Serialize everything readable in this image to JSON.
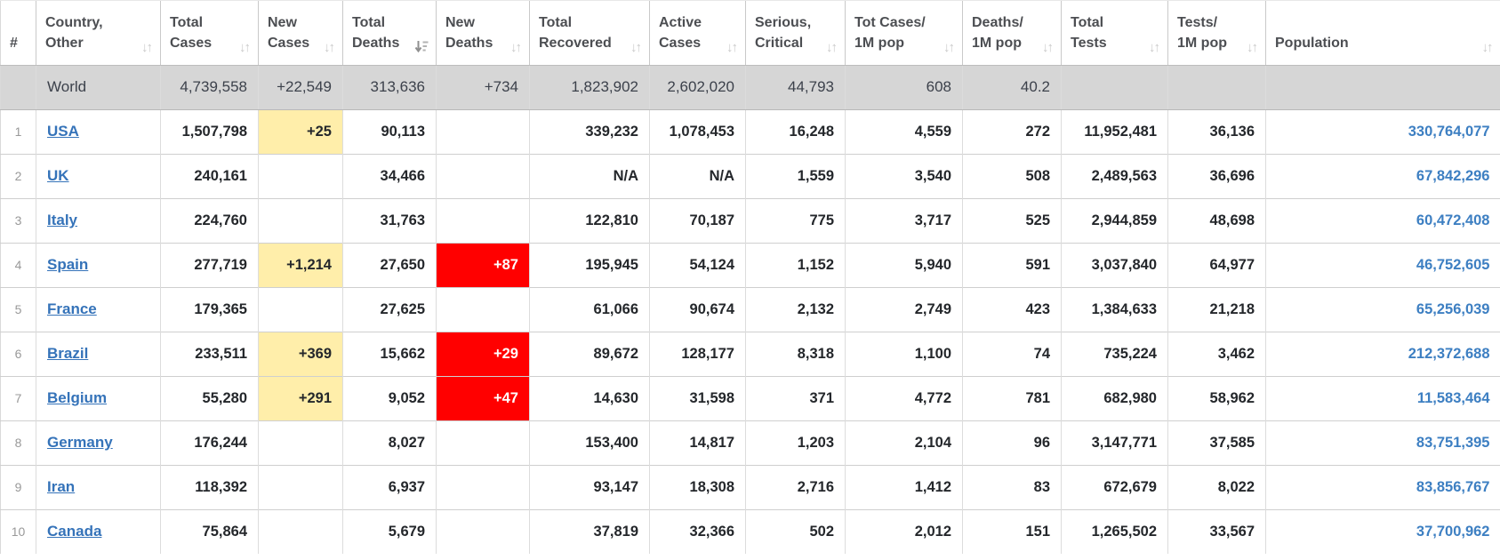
{
  "table": {
    "columns": [
      {
        "key": "idx",
        "label": "#",
        "sort": null
      },
      {
        "key": "country",
        "label": "Country,\nOther",
        "sort": "both"
      },
      {
        "key": "total_cases",
        "label": "Total\nCases",
        "sort": "both"
      },
      {
        "key": "new_cases",
        "label": "New\nCases",
        "sort": "both"
      },
      {
        "key": "total_deaths",
        "label": "Total\nDeaths",
        "sort": "desc"
      },
      {
        "key": "new_deaths",
        "label": "New\nDeaths",
        "sort": "both"
      },
      {
        "key": "total_recovered",
        "label": "Total\nRecovered",
        "sort": "both"
      },
      {
        "key": "active_cases",
        "label": "Active\nCases",
        "sort": "both"
      },
      {
        "key": "serious_critical",
        "label": "Serious,\nCritical",
        "sort": "both"
      },
      {
        "key": "cases_per_1m",
        "label": "Tot Cases/\n1M pop",
        "sort": "both"
      },
      {
        "key": "deaths_per_1m",
        "label": "Deaths/\n1M pop",
        "sort": "both"
      },
      {
        "key": "total_tests",
        "label": "Total\nTests",
        "sort": "both"
      },
      {
        "key": "tests_per_1m",
        "label": "Tests/\n1M pop",
        "sort": "both"
      },
      {
        "key": "population",
        "label": "Population",
        "sort": "both"
      }
    ],
    "world_row": {
      "idx": "",
      "country": "World",
      "total_cases": "4,739,558",
      "new_cases": "+22,549",
      "total_deaths": "313,636",
      "new_deaths": "+734",
      "total_recovered": "1,823,902",
      "active_cases": "2,602,020",
      "serious_critical": "44,793",
      "cases_per_1m": "608",
      "deaths_per_1m": "40.2",
      "total_tests": "",
      "tests_per_1m": "",
      "population": ""
    },
    "rows": [
      {
        "idx": "1",
        "country": "USA",
        "total_cases": "1,507,798",
        "new_cases": "+25",
        "total_deaths": "90,113",
        "new_deaths": "",
        "total_recovered": "339,232",
        "active_cases": "1,078,453",
        "serious_critical": "16,248",
        "cases_per_1m": "4,559",
        "deaths_per_1m": "272",
        "total_tests": "11,952,481",
        "tests_per_1m": "36,136",
        "population": "330,764,077"
      },
      {
        "idx": "2",
        "country": "UK",
        "total_cases": "240,161",
        "new_cases": "",
        "total_deaths": "34,466",
        "new_deaths": "",
        "total_recovered": "N/A",
        "active_cases": "N/A",
        "serious_critical": "1,559",
        "cases_per_1m": "3,540",
        "deaths_per_1m": "508",
        "total_tests": "2,489,563",
        "tests_per_1m": "36,696",
        "population": "67,842,296"
      },
      {
        "idx": "3",
        "country": "Italy",
        "total_cases": "224,760",
        "new_cases": "",
        "total_deaths": "31,763",
        "new_deaths": "",
        "total_recovered": "122,810",
        "active_cases": "70,187",
        "serious_critical": "775",
        "cases_per_1m": "3,717",
        "deaths_per_1m": "525",
        "total_tests": "2,944,859",
        "tests_per_1m": "48,698",
        "population": "60,472,408"
      },
      {
        "idx": "4",
        "country": "Spain",
        "total_cases": "277,719",
        "new_cases": "+1,214",
        "total_deaths": "27,650",
        "new_deaths": "+87",
        "total_recovered": "195,945",
        "active_cases": "54,124",
        "serious_critical": "1,152",
        "cases_per_1m": "5,940",
        "deaths_per_1m": "591",
        "total_tests": "3,037,840",
        "tests_per_1m": "64,977",
        "population": "46,752,605"
      },
      {
        "idx": "5",
        "country": "France",
        "total_cases": "179,365",
        "new_cases": "",
        "total_deaths": "27,625",
        "new_deaths": "",
        "total_recovered": "61,066",
        "active_cases": "90,674",
        "serious_critical": "2,132",
        "cases_per_1m": "2,749",
        "deaths_per_1m": "423",
        "total_tests": "1,384,633",
        "tests_per_1m": "21,218",
        "population": "65,256,039"
      },
      {
        "idx": "6",
        "country": "Brazil",
        "total_cases": "233,511",
        "new_cases": "+369",
        "total_deaths": "15,662",
        "new_deaths": "+29",
        "total_recovered": "89,672",
        "active_cases": "128,177",
        "serious_critical": "8,318",
        "cases_per_1m": "1,100",
        "deaths_per_1m": "74",
        "total_tests": "735,224",
        "tests_per_1m": "3,462",
        "population": "212,372,688"
      },
      {
        "idx": "7",
        "country": "Belgium",
        "total_cases": "55,280",
        "new_cases": "+291",
        "total_deaths": "9,052",
        "new_deaths": "+47",
        "total_recovered": "14,630",
        "active_cases": "31,598",
        "serious_critical": "371",
        "cases_per_1m": "4,772",
        "deaths_per_1m": "781",
        "total_tests": "682,980",
        "tests_per_1m": "58,962",
        "population": "11,583,464"
      },
      {
        "idx": "8",
        "country": "Germany",
        "total_cases": "176,244",
        "new_cases": "",
        "total_deaths": "8,027",
        "new_deaths": "",
        "total_recovered": "153,400",
        "active_cases": "14,817",
        "serious_critical": "1,203",
        "cases_per_1m": "2,104",
        "deaths_per_1m": "96",
        "total_tests": "3,147,771",
        "tests_per_1m": "37,585",
        "population": "83,751,395"
      },
      {
        "idx": "9",
        "country": "Iran",
        "total_cases": "118,392",
        "new_cases": "",
        "total_deaths": "6,937",
        "new_deaths": "",
        "total_recovered": "93,147",
        "active_cases": "18,308",
        "serious_critical": "2,716",
        "cases_per_1m": "1,412",
        "deaths_per_1m": "83",
        "total_tests": "672,679",
        "tests_per_1m": "8,022",
        "population": "83,856,767"
      },
      {
        "idx": "10",
        "country": "Canada",
        "total_cases": "75,864",
        "new_cases": "",
        "total_deaths": "5,679",
        "new_deaths": "",
        "total_recovered": "37,819",
        "active_cases": "32,366",
        "serious_critical": "502",
        "cases_per_1m": "2,012",
        "deaths_per_1m": "151",
        "total_tests": "1,265,502",
        "tests_per_1m": "33,567",
        "population": "37,700,962"
      }
    ]
  },
  "icons": {
    "sort_both": "↓↑"
  },
  "colors": {
    "new_cases_highlight": "#FFEEAA",
    "new_deaths_highlight": "#FF0000",
    "new_deaths_text": "#FFFFFF",
    "link_blue": "#3573B9",
    "population_blue": "#3D7FC2",
    "world_row_bg": "#D6D6D6",
    "header_text": "#4C4E52"
  }
}
